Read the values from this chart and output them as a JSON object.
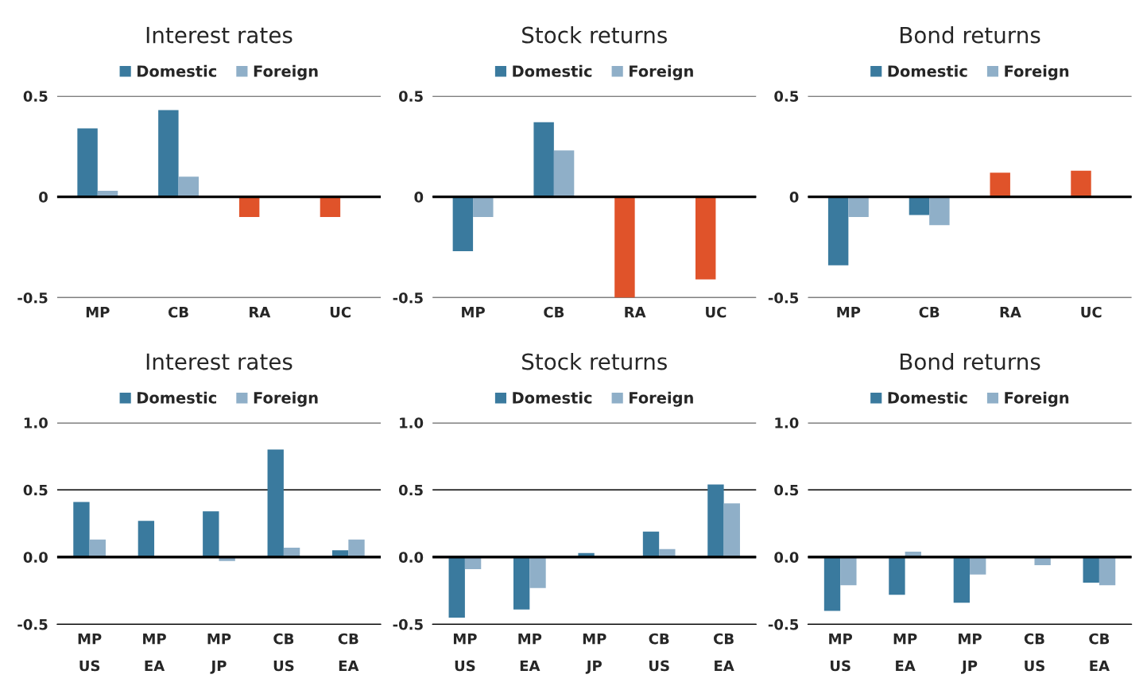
{
  "chart_data": [
    {
      "type": "bar",
      "title": "Interest rates",
      "categories": [
        "MP",
        "CB",
        "RA",
        "UC"
      ],
      "series": [
        {
          "name": "Domestic",
          "color": "#3a7a9e",
          "colors": [
            "#3a7a9e",
            "#3a7a9e",
            "#e0532a",
            "#e0532a"
          ],
          "values": [
            0.34,
            0.43,
            -0.1,
            -0.1
          ]
        },
        {
          "name": "Foreign",
          "color": "#8fafc8",
          "values": [
            0.03,
            0.1,
            null,
            null
          ]
        }
      ],
      "ylim": [
        -0.5,
        0.5
      ],
      "yticks": [
        -0.5,
        0,
        0.5
      ],
      "grid": "y",
      "legend": "top",
      "ref_lines": [
        {
          "axis": "y",
          "value": 0,
          "label": null,
          "color": "#000000"
        }
      ]
    },
    {
      "type": "bar",
      "title": "Stock returns",
      "categories": [
        "MP",
        "CB",
        "RA",
        "UC"
      ],
      "series": [
        {
          "name": "Domestic",
          "color": "#3a7a9e",
          "colors": [
            "#3a7a9e",
            "#3a7a9e",
            "#e0532a",
            "#e0532a"
          ],
          "values": [
            -0.27,
            0.37,
            -0.5,
            -0.41
          ]
        },
        {
          "name": "Foreign",
          "color": "#8fafc8",
          "values": [
            -0.1,
            0.23,
            null,
            null
          ]
        }
      ],
      "ylim": [
        -0.5,
        0.5
      ],
      "yticks": [
        -0.5,
        0,
        0.5
      ],
      "grid": "y",
      "legend": "top",
      "ref_lines": [
        {
          "axis": "y",
          "value": 0,
          "label": null,
          "color": "#000000"
        }
      ]
    },
    {
      "type": "bar",
      "title": "Bond returns",
      "categories": [
        "MP",
        "CB",
        "RA",
        "UC"
      ],
      "series": [
        {
          "name": "Domestic",
          "color": "#3a7a9e",
          "colors": [
            "#3a7a9e",
            "#3a7a9e",
            "#e0532a",
            "#e0532a"
          ],
          "values": [
            -0.34,
            -0.09,
            0.12,
            0.13
          ]
        },
        {
          "name": "Foreign",
          "color": "#8fafc8",
          "values": [
            -0.1,
            -0.14,
            null,
            null
          ]
        }
      ],
      "ylim": [
        -0.5,
        0.5
      ],
      "yticks": [
        -0.5,
        0,
        0.5
      ],
      "grid": "y",
      "legend": "top",
      "ref_lines": [
        {
          "axis": "y",
          "value": 0,
          "label": null,
          "color": "#000000"
        }
      ]
    },
    {
      "type": "bar",
      "title": "Interest rates",
      "categories": [
        "MP\nUS",
        "MP\nEA",
        "MP\nJP",
        "CB\nUS",
        "CB\nEA"
      ],
      "series": [
        {
          "name": "Domestic",
          "color": "#3a7a9e",
          "values": [
            0.41,
            0.27,
            0.34,
            0.8,
            0.05
          ]
        },
        {
          "name": "Foreign",
          "color": "#8fafc8",
          "values": [
            0.13,
            null,
            -0.03,
            0.07,
            0.13
          ]
        }
      ],
      "ylim": [
        -0.5,
        1.0
      ],
      "yticks": [
        {
          "value": -0.5,
          "label": "-0.5"
        },
        {
          "value": 0,
          "label": "0.0"
        },
        {
          "value": 0.5,
          "label": "0.5"
        },
        {
          "value": 1,
          "label": "1.0"
        }
      ],
      "grid": "y",
      "legend": "top",
      "ref_lines": [
        {
          "axis": "y",
          "value": 0,
          "label": null,
          "color": "#000000"
        }
      ]
    },
    {
      "type": "bar",
      "title": "Stock returns",
      "categories": [
        "MP\nUS",
        "MP\nEA",
        "MP\nJP",
        "CB\nUS",
        "CB\nEA"
      ],
      "series": [
        {
          "name": "Domestic",
          "color": "#3a7a9e",
          "values": [
            -0.45,
            -0.39,
            0.03,
            0.19,
            0.54
          ]
        },
        {
          "name": "Foreign",
          "color": "#8fafc8",
          "values": [
            -0.09,
            -0.23,
            null,
            0.06,
            0.4
          ]
        }
      ],
      "ylim": [
        -0.5,
        1.0
      ],
      "yticks": [
        {
          "value": -0.5,
          "label": "-0.5"
        },
        {
          "value": 0,
          "label": "0.0"
        },
        {
          "value": 0.5,
          "label": "0.5"
        },
        {
          "value": 1,
          "label": "1.0"
        }
      ],
      "grid": "y",
      "legend": "top",
      "ref_lines": [
        {
          "axis": "y",
          "value": 0,
          "label": null,
          "color": "#000000"
        }
      ]
    },
    {
      "type": "bar",
      "title": "Bond returns",
      "categories": [
        "MP\nUS",
        "MP\nEA",
        "MP\nJP",
        "CB\nUS",
        "CB\nEA"
      ],
      "series": [
        {
          "name": "Domestic",
          "color": "#3a7a9e",
          "values": [
            -0.4,
            -0.28,
            -0.34,
            null,
            -0.19
          ]
        },
        {
          "name": "Foreign",
          "color": "#8fafc8",
          "values": [
            -0.21,
            0.04,
            -0.13,
            -0.06,
            -0.21
          ]
        }
      ],
      "ylim": [
        -0.5,
        1.0
      ],
      "yticks": [
        {
          "value": -0.5,
          "label": "-0.5"
        },
        {
          "value": 0,
          "label": "0.0"
        },
        {
          "value": 0.5,
          "label": "0.5"
        },
        {
          "value": 1,
          "label": "1.0"
        }
      ],
      "grid": "y",
      "legend": "top",
      "ref_lines": [
        {
          "axis": "y",
          "value": 0,
          "label": null,
          "color": "#000000"
        }
      ]
    }
  ]
}
